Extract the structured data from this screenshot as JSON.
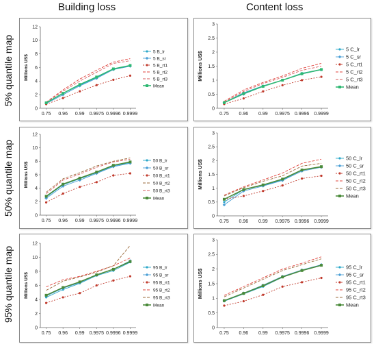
{
  "headers": {
    "building": "Building loss",
    "content": "Content loss"
  },
  "row_labels": [
    "5% quantile map",
    "50% quantile map",
    "95% quantile map"
  ],
  "chart_data": [
    {
      "type": "line",
      "row": 0,
      "col": 0,
      "categories": [
        "0.75",
        "0.96",
        "0.99",
        "0.9975",
        "0.9996",
        "0.9999"
      ],
      "ylabel": "Millions US$",
      "ylim": [
        0,
        12
      ],
      "yticks": [
        0,
        2,
        4,
        6,
        8,
        10,
        12
      ],
      "legend_position": "right",
      "series": [
        {
          "name": "5 B_lr",
          "values": [
            0.8,
            2.2,
            3.4,
            4.5,
            5.7,
            6.2
          ],
          "color": "#2aa7c9",
          "dash": "",
          "marker": "dot"
        },
        {
          "name": "5 B_sr",
          "values": [
            0.7,
            2.0,
            3.3,
            4.4,
            5.7,
            6.2
          ],
          "color": "#4a9fd6",
          "dash": "",
          "marker": "diamond"
        },
        {
          "name": "5 B_rt1",
          "values": [
            0.6,
            1.5,
            2.5,
            3.4,
            4.2,
            4.8
          ],
          "color": "#c0392b",
          "dash": "2,2",
          "marker": "dot"
        },
        {
          "name": "5 B_rt2",
          "values": [
            0.9,
            2.7,
            4.3,
            5.6,
            6.8,
            7.3
          ],
          "color": "#e0403a",
          "dash": "4,2",
          "marker": "none"
        },
        {
          "name": "5 B_rt3",
          "values": [
            0.9,
            2.5,
            4.0,
            5.3,
            6.6,
            7.0
          ],
          "color": "#d65a5a",
          "dash": "4,2",
          "marker": "none"
        },
        {
          "name": "Mean",
          "values": [
            0.8,
            2.2,
            3.5,
            4.6,
            5.8,
            6.3
          ],
          "color": "#2eb872",
          "dash": "",
          "marker": "square",
          "bold": true
        }
      ]
    },
    {
      "type": "line",
      "row": 0,
      "col": 1,
      "categories": [
        "0.75",
        "0.96",
        "0.99",
        "0.9975",
        "0.9996",
        "0.9999"
      ],
      "ylabel": "Millions US$",
      "ylim": [
        0,
        3
      ],
      "yticks": [
        0,
        0.5,
        1,
        1.5,
        2,
        2.5,
        3
      ],
      "legend_position": "right",
      "series": [
        {
          "name": "5 C_lr",
          "values": [
            0.2,
            0.55,
            0.8,
            1.0,
            1.25,
            1.38
          ],
          "color": "#2aa7c9",
          "dash": "",
          "marker": "dot"
        },
        {
          "name": "5 C_sr",
          "values": [
            0.2,
            0.5,
            0.78,
            1.0,
            1.22,
            1.37
          ],
          "color": "#4a9fd6",
          "dash": "",
          "marker": "diamond"
        },
        {
          "name": "5 C_rt1",
          "values": [
            0.15,
            0.35,
            0.6,
            0.82,
            1.0,
            1.12
          ],
          "color": "#c0392b",
          "dash": "2,2",
          "marker": "dot"
        },
        {
          "name": "5 C_rt2",
          "values": [
            0.25,
            0.65,
            0.92,
            1.15,
            1.42,
            1.6
          ],
          "color": "#e0403a",
          "dash": "4,2",
          "marker": "none"
        },
        {
          "name": "5 C_rt3",
          "values": [
            0.22,
            0.6,
            0.88,
            1.1,
            1.35,
            1.5
          ],
          "color": "#d65a5a",
          "dash": "4,2",
          "marker": "none"
        },
        {
          "name": "Mean",
          "values": [
            0.2,
            0.52,
            0.78,
            1.0,
            1.23,
            1.38
          ],
          "color": "#2eb872",
          "dash": "",
          "marker": "square",
          "bold": true
        }
      ]
    },
    {
      "type": "line",
      "row": 1,
      "col": 0,
      "categories": [
        "0.75",
        "0.96",
        "0.99",
        "0.9975",
        "0.9996",
        "0.9999"
      ],
      "ylabel": "Millions US$",
      "ylim": [
        0,
        12
      ],
      "yticks": [
        0,
        2,
        4,
        6,
        8,
        10,
        12
      ],
      "legend_position": "right",
      "series": [
        {
          "name": "50 B_lr",
          "values": [
            2.7,
            4.5,
            5.4,
            6.3,
            7.3,
            7.8
          ],
          "color": "#2aa7c9",
          "dash": "",
          "marker": "dot"
        },
        {
          "name": "50 B_sr",
          "values": [
            2.5,
            4.3,
            5.2,
            6.2,
            7.2,
            7.7
          ],
          "color": "#4a9fd6",
          "dash": "",
          "marker": "diamond"
        },
        {
          "name": "50 B_rt1",
          "values": [
            1.9,
            3.2,
            4.2,
            4.9,
            5.9,
            6.2
          ],
          "color": "#c0392b",
          "dash": "2,2",
          "marker": "dot"
        },
        {
          "name": "50 B_rt2",
          "values": [
            3.4,
            5.4,
            6.3,
            7.3,
            8.0,
            8.5
          ],
          "color": "#9a6a3a",
          "dash": "4,2",
          "marker": "none"
        },
        {
          "name": "50 B_rt3",
          "values": [
            3.2,
            5.2,
            6.1,
            7.1,
            7.9,
            8.3
          ],
          "color": "#d65a5a",
          "dash": "4,2",
          "marker": "none"
        },
        {
          "name": "Mean",
          "values": [
            2.8,
            4.6,
            5.5,
            6.4,
            7.4,
            7.9
          ],
          "color": "#4a8a3a",
          "dash": "",
          "marker": "square",
          "bold": true
        }
      ]
    },
    {
      "type": "line",
      "row": 1,
      "col": 1,
      "categories": [
        "0.75",
        "0.96",
        "0.99",
        "0.9975",
        "0.9996",
        "0.9999"
      ],
      "ylabel": "Millions US$",
      "ylim": [
        0,
        3
      ],
      "yticks": [
        0,
        0.5,
        1,
        1.5,
        2,
        2.5,
        3
      ],
      "legend_position": "right",
      "series": [
        {
          "name": "50 C_lr",
          "values": [
            0.5,
            0.95,
            1.1,
            1.3,
            1.65,
            1.78
          ],
          "color": "#2aa7c9",
          "dash": "",
          "marker": "dot"
        },
        {
          "name": "50 C_sr",
          "values": [
            0.4,
            0.9,
            1.08,
            1.28,
            1.62,
            1.76
          ],
          "color": "#4a9fd6",
          "dash": "",
          "marker": "diamond"
        },
        {
          "name": "50 C_rt1",
          "values": [
            0.6,
            0.72,
            0.9,
            1.1,
            1.35,
            1.45
          ],
          "color": "#c0392b",
          "dash": "2,2",
          "marker": "dot"
        },
        {
          "name": "50 C_rt2",
          "values": [
            0.75,
            1.05,
            1.3,
            1.55,
            1.9,
            2.05
          ],
          "color": "#e0403a",
          "dash": "4,2",
          "marker": "none"
        },
        {
          "name": "50 C_rt3",
          "values": [
            0.72,
            1.02,
            1.25,
            1.45,
            1.8,
            1.9
          ],
          "color": "#9a6a3a",
          "dash": "4,2",
          "marker": "none"
        },
        {
          "name": "Mean",
          "values": [
            0.6,
            0.95,
            1.12,
            1.33,
            1.66,
            1.78
          ],
          "color": "#4a8a3a",
          "dash": "",
          "marker": "square",
          "bold": true
        }
      ]
    },
    {
      "type": "line",
      "row": 2,
      "col": 0,
      "categories": [
        "0.75",
        "0.96",
        "0.99",
        "0.9975",
        "0.9996",
        "0.9999"
      ],
      "ylabel": "Millions US$",
      "ylim": [
        0,
        12
      ],
      "yticks": [
        0,
        2,
        4,
        6,
        8,
        10,
        12
      ],
      "legend_position": "right",
      "series": [
        {
          "name": "95 B_lr",
          "values": [
            4.3,
            5.4,
            6.3,
            7.4,
            8.1,
            9.3
          ],
          "color": "#2aa7c9",
          "dash": "",
          "marker": "dot"
        },
        {
          "name": "95 B_sr",
          "values": [
            4.5,
            5.6,
            6.4,
            7.5,
            8.3,
            9.5
          ],
          "color": "#4a9fd6",
          "dash": "",
          "marker": "diamond"
        },
        {
          "name": "95 B_rt1",
          "values": [
            3.5,
            4.3,
            4.9,
            6.0,
            6.7,
            7.3
          ],
          "color": "#c0392b",
          "dash": "2,2",
          "marker": "dot"
        },
        {
          "name": "95 B_rt2",
          "values": [
            5.8,
            6.8,
            7.3,
            8.0,
            8.8,
            9.9
          ],
          "color": "#e0403a",
          "dash": "4,2",
          "marker": "none"
        },
        {
          "name": "95 B_rt3",
          "values": [
            5.3,
            6.6,
            7.2,
            7.9,
            8.8,
            11.7
          ],
          "color": "#9a6a3a",
          "dash": "4,2",
          "marker": "none"
        },
        {
          "name": "Mean",
          "values": [
            4.6,
            5.7,
            6.5,
            7.5,
            8.3,
            9.4
          ],
          "color": "#4a8a3a",
          "dash": "",
          "marker": "square",
          "bold": true
        }
      ]
    },
    {
      "type": "line",
      "row": 2,
      "col": 1,
      "categories": [
        "0.75",
        "0.96",
        "0.99",
        "0.9975",
        "0.9996",
        "0.9999"
      ],
      "ylabel": "Millions US$",
      "ylim": [
        0,
        3
      ],
      "yticks": [
        0,
        0.5,
        1,
        1.5,
        2,
        2.5,
        3
      ],
      "legend_position": "right",
      "series": [
        {
          "name": "95 C_lr",
          "values": [
            0.9,
            1.15,
            1.4,
            1.72,
            1.95,
            2.12
          ],
          "color": "#2aa7c9",
          "dash": "",
          "marker": "dot"
        },
        {
          "name": "95 C_sr",
          "values": [
            0.92,
            1.18,
            1.45,
            1.75,
            1.97,
            2.15
          ],
          "color": "#4a9fd6",
          "dash": "",
          "marker": "diamond"
        },
        {
          "name": "95 C_rt1",
          "values": [
            0.75,
            0.9,
            1.12,
            1.4,
            1.55,
            1.7
          ],
          "color": "#c0392b",
          "dash": "2,2",
          "marker": "dot"
        },
        {
          "name": "95 C_rt2",
          "values": [
            1.1,
            1.4,
            1.7,
            2.0,
            2.2,
            2.42
          ],
          "color": "#e0403a",
          "dash": "4,2",
          "marker": "none"
        },
        {
          "name": "95 C_rt3",
          "values": [
            1.05,
            1.35,
            1.65,
            1.95,
            2.15,
            2.35
          ],
          "color": "#9a6a3a",
          "dash": "4,2",
          "marker": "none"
        },
        {
          "name": "Mean",
          "values": [
            0.92,
            1.17,
            1.43,
            1.73,
            1.95,
            2.13
          ],
          "color": "#4a8a3a",
          "dash": "",
          "marker": "square",
          "bold": true
        }
      ]
    }
  ]
}
